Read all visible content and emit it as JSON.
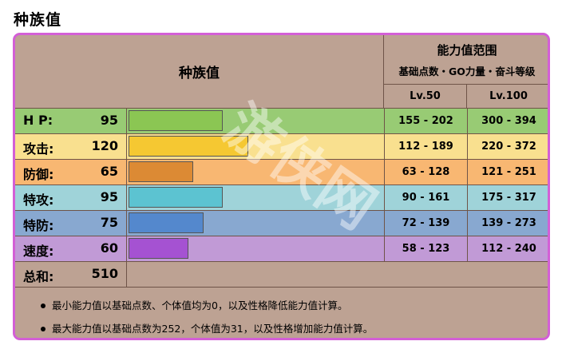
{
  "page_title": "种族值",
  "table": {
    "header_title": "种族值",
    "range_title": "能力值范围",
    "range_subtitle": "基础点数・GO力量・奋斗等级",
    "level_headers": [
      "Lv.50",
      "Lv.100"
    ]
  },
  "stat_max": 255,
  "stats": [
    {
      "name": "H P:",
      "value": "95",
      "bar_value": 95,
      "color": "#8bc653",
      "row_bg": "#98cb74",
      "lv50": "155 - 202",
      "lv100": "300 - 394"
    },
    {
      "name": "攻击:",
      "value": "120",
      "bar_value": 120,
      "color": "#f5c832",
      "row_bg": "#f9e08f",
      "lv50": "112 - 189",
      "lv100": "220 - 372"
    },
    {
      "name": "防御:",
      "value": "65",
      "bar_value": 65,
      "color": "#dc8a34",
      "row_bg": "#f8b772",
      "lv50": "63 - 128",
      "lv100": "121 - 251"
    },
    {
      "name": "特攻:",
      "value": "95",
      "bar_value": 95,
      "color": "#5cc3d1",
      "row_bg": "#9fd3d9",
      "lv50": "90 - 161",
      "lv100": "175 - 317"
    },
    {
      "name": "特防:",
      "value": "75",
      "bar_value": 75,
      "color": "#5488cd",
      "row_bg": "#88a8d0",
      "lv50": "72 - 139",
      "lv100": "139 - 273"
    },
    {
      "name": "速度:",
      "value": "60",
      "bar_value": 60,
      "color": "#a552d2",
      "row_bg": "#c19ad6",
      "lv50": "58 - 123",
      "lv100": "112 - 240"
    }
  ],
  "total": {
    "name": "总和:",
    "value": "510"
  },
  "notes": [
    "最小能力值以基础点数、个体值均为0，以及性格降低能力值计算。",
    "最大能力值以基础点数为252，个体值为31，以及性格增加能力值计算。"
  ],
  "watermark": "游侠网",
  "colors": {
    "frame_border": "#d35fd6",
    "table_bg": "#bda293"
  }
}
